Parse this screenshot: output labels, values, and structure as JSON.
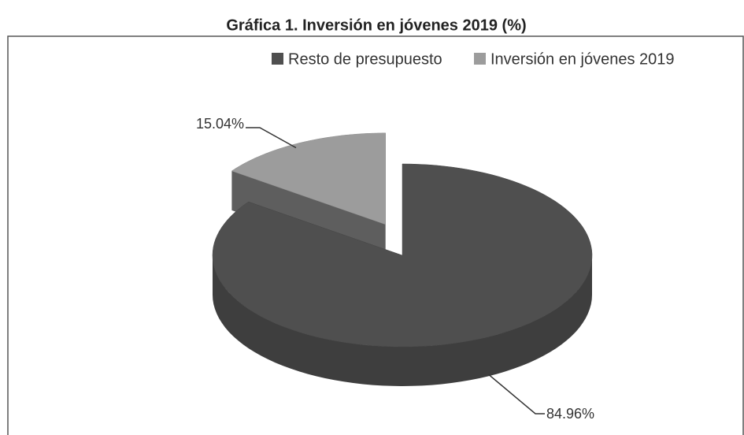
{
  "chart_data": {
    "type": "pie3d",
    "title": "Gráfica 1. Inversión en jóvenes 2019 (%)",
    "categories": [
      "Resto de presupuesto",
      "Inversión en jóvenes 2019"
    ],
    "values": [
      84.96,
      15.04
    ],
    "value_labels": [
      "84.96%",
      "15.04%"
    ],
    "colors": [
      "#4f4f4f",
      "#9c9c9c"
    ],
    "legend": "top"
  }
}
